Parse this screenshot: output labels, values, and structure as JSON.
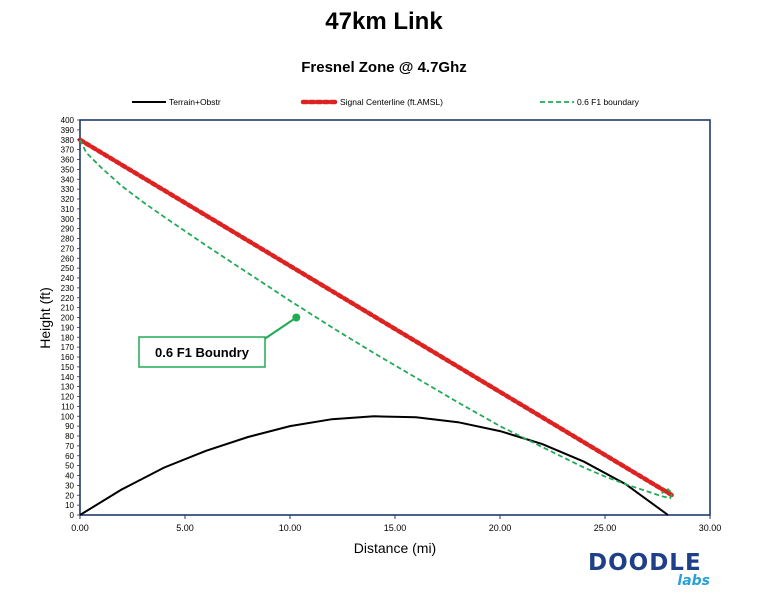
{
  "title": "47km Link",
  "chart_data": {
    "type": "line",
    "title": "Fresnel Zone @ 4.7Ghz",
    "xlabel": "Distance (mi)",
    "ylabel": "Height (ft)",
    "xlim": [
      0,
      30
    ],
    "ylim": [
      0,
      400
    ],
    "x_tick_step": 5,
    "y_tick_step": 10,
    "legend_position": "top",
    "series": [
      {
        "name": "Terrain+Obstr",
        "color": "#000000",
        "style": "solid",
        "x": [
          0,
          2,
          4,
          6,
          8,
          10,
          12,
          14,
          16,
          18,
          20,
          22,
          24,
          26,
          28
        ],
        "y": [
          0,
          26,
          48,
          65,
          79,
          90,
          97,
          100,
          99,
          94,
          85,
          72,
          54,
          31,
          0
        ]
      },
      {
        "name": "Signal Centerline (ft.AMSL)",
        "color": "#dd2222",
        "style": "dotted",
        "x": [
          0,
          28.2
        ],
        "y": [
          380,
          20
        ]
      },
      {
        "name": "0.6 F1 boundary",
        "color": "#22aa55",
        "style": "dashed",
        "x": [
          0,
          0.3,
          1,
          2,
          3,
          4,
          6,
          8,
          10,
          12,
          14,
          16,
          18,
          20,
          22,
          24,
          25,
          26,
          27,
          27.7,
          28.1,
          28.2,
          28.0,
          27.7
        ],
        "y": [
          380,
          367,
          352,
          333,
          317,
          302,
          273,
          245,
          217,
          190,
          164,
          139,
          114,
          90,
          69,
          48,
          39,
          31,
          24,
          19,
          17,
          22,
          26,
          22
        ]
      }
    ],
    "annotation": {
      "text": "0.6 F1 Boundry",
      "color": "#22aa55",
      "target_x": 10.3,
      "target_y": 200
    }
  },
  "logo": {
    "main": "DOODLE",
    "sub": "labs"
  }
}
